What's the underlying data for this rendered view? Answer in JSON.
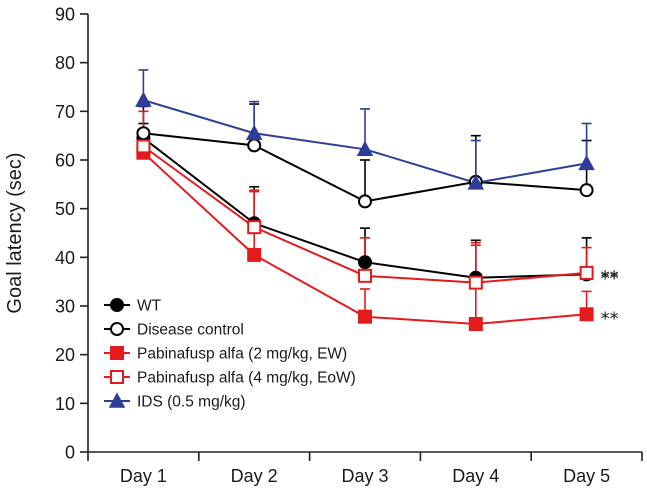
{
  "chart_data": {
    "type": "line",
    "title": "",
    "xlabel": "",
    "ylabel": "Goal latency (sec)",
    "ylim": [
      0,
      90
    ],
    "yticks": [
      0,
      10,
      20,
      30,
      40,
      50,
      60,
      70,
      80,
      90
    ],
    "grid": false,
    "legend_position": "bottom-left",
    "categories": [
      "Day 1",
      "Day 2",
      "Day 3",
      "Day 4",
      "Day 5"
    ],
    "series": [
      {
        "name": "WT",
        "color": "#000000",
        "marker": "circle",
        "filled": true,
        "values": [
          64.5,
          47,
          39,
          35.8,
          36.5
        ],
        "error_upper": [
          67.5,
          54.5,
          46,
          43.5,
          44
        ]
      },
      {
        "name": "Disease control",
        "color": "#000000",
        "marker": "circle",
        "filled": false,
        "values": [
          65.5,
          63,
          51.5,
          55.5,
          53.8
        ],
        "error_upper": [
          71,
          71.5,
          60,
          65,
          64
        ]
      },
      {
        "name": "Pabinafusp alfa (2 mg/kg, EW)",
        "color": "#e41a1c",
        "marker": "square",
        "filled": true,
        "values": [
          61.5,
          40.5,
          27.8,
          26.3,
          28.3
        ],
        "error_upper": [
          64.5,
          53.8,
          33.5,
          42.5,
          33
        ]
      },
      {
        "name": "Pabinafusp alfa (4 mg/kg, EoW)",
        "color": "#e41a1c",
        "marker": "square",
        "filled": false,
        "values": [
          62.8,
          46.2,
          36.2,
          34.8,
          36.8
        ],
        "error_upper": [
          70,
          53.5,
          44,
          43,
          42
        ]
      },
      {
        "name": "IDS (0.5 mg/kg)",
        "color": "#2e3d9a",
        "marker": "triangle",
        "filled": true,
        "values": [
          72.3,
          65.5,
          62.2,
          55.3,
          59.3
        ],
        "error_upper": [
          78.5,
          72,
          70.5,
          64,
          67.5
        ]
      }
    ],
    "annotations": [
      {
        "text": "**",
        "category": "Day 5",
        "value": 36.8
      },
      {
        "text": "**",
        "category": "Day 5",
        "value": 36.5
      },
      {
        "text": "**",
        "category": "Day 5",
        "value": 28.3
      }
    ]
  }
}
